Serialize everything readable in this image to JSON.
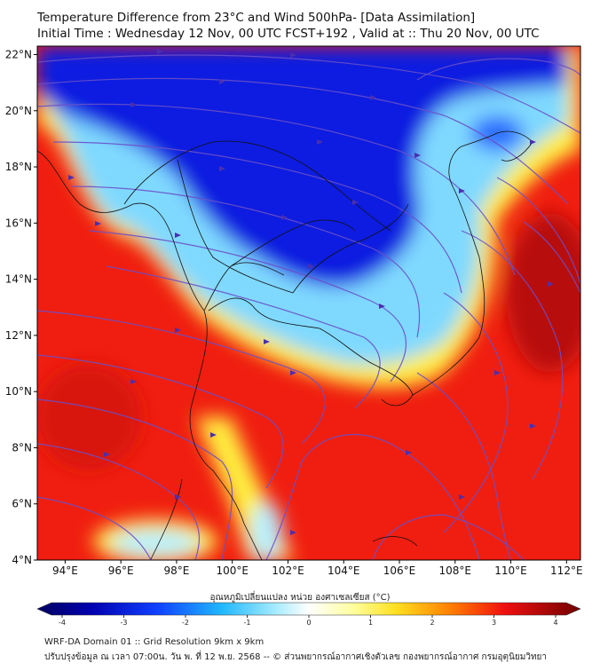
{
  "title_line1": "Temperature Difference from 23°C and Wind 500hPa- [Data Assimilation]",
  "title_line2": "Initial Time : Wednesday 12 Nov, 00 UTC FCST+192 , Valid at ::  Thu 20 Nov, 00 UTC",
  "map": {
    "lon_range": [
      93,
      112.5
    ],
    "lat_range": [
      4,
      22.3
    ],
    "lon_ticks": [
      "94°E",
      "96°E",
      "98°E",
      "100°E",
      "102°E",
      "104°E",
      "106°E",
      "108°E",
      "110°E",
      "112°E"
    ],
    "lat_ticks": [
      "4°N",
      "6°N",
      "8°N",
      "10°N",
      "12°N",
      "14°N",
      "16°N",
      "18°N",
      "20°N",
      "22°N"
    ],
    "field_colors": {
      "deep_blue": "#0a1fe0",
      "light_blue": "#7fd9ff",
      "yellow": "#ffee40",
      "red": "#f01e10",
      "dark_red": "#b80808",
      "streamline": "#6b4fc8"
    }
  },
  "colorbar": {
    "label": "อุณหภูมิเปลี่ยนแปลง หน่วย องศาเซลเซียส (°C)",
    "ticks": [
      "-4",
      "-3",
      "-2",
      "-1",
      "0",
      "1",
      "2",
      "3",
      "4"
    ]
  },
  "footer_line1": "WRF-DA Domain 01 :: Grid Resolution 9km x 9km",
  "footer_line2": "ปรับปรุงข้อมูล ณ เวลา 07:00น. วัน พ. ที่ 12 พ.ย. 2568 -- © ส่วนพยากรณ์อากาศเชิงตัวเลข กองพยากรณ์อากาศ กรมอุตุนิยมวิทยา"
}
